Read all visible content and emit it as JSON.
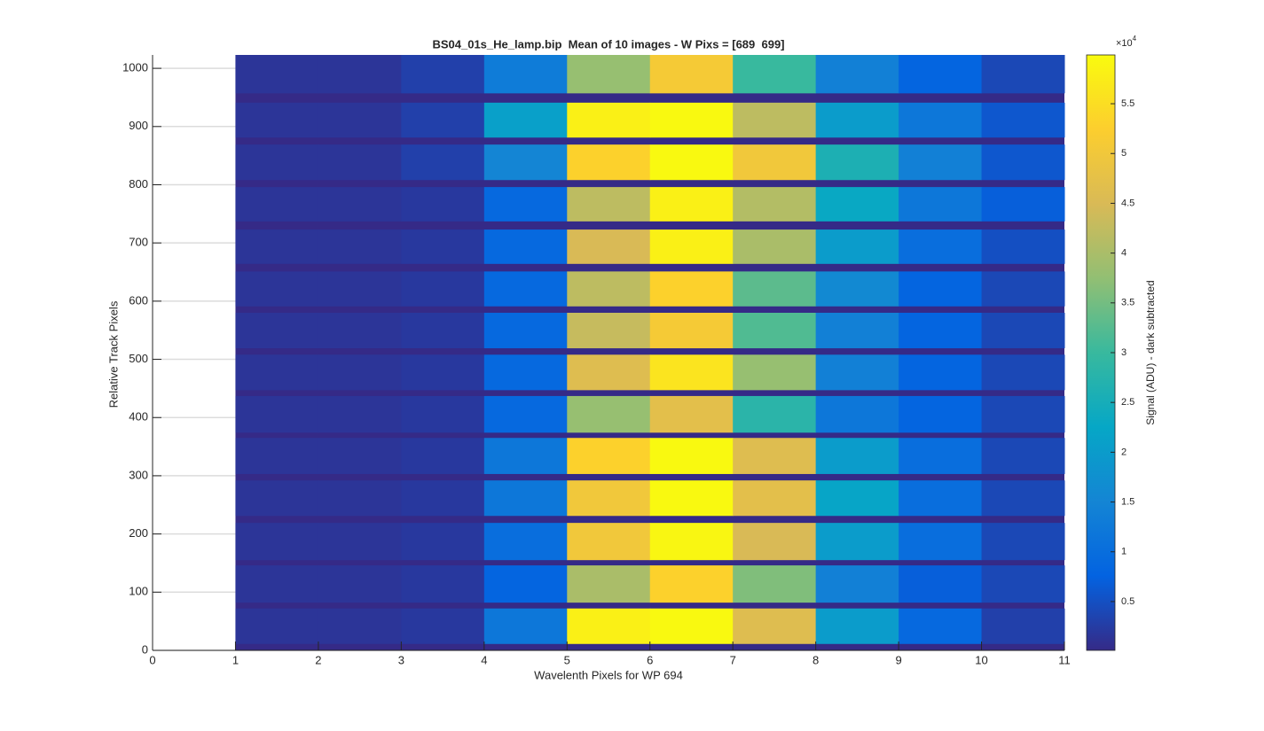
{
  "chart_data": {
    "type": "heatmap",
    "title": "BS04_01s_He_lamp.bip  Mean of 10 images - W Pixs = [689  699]",
    "xlabel": "Wavelenth Pixels for WP 694",
    "ylabel": "Relative Track Pixels",
    "colorbar_label": "Signal (ADU) - dark subtracted",
    "colorbar_multiplier_base": "×10",
    "colorbar_multiplier_exponent": "4",
    "xlim": [
      0,
      11
    ],
    "xticks": [
      0,
      1,
      2,
      3,
      4,
      5,
      6,
      7,
      8,
      9,
      10,
      11
    ],
    "ylim": [
      0,
      1023
    ],
    "yticks": [
      0,
      100,
      200,
      300,
      400,
      500,
      600,
      700,
      800,
      900,
      1000
    ],
    "ygrid": true,
    "clim": [
      0.01,
      5.99
    ],
    "cticks": [
      0.5,
      1,
      1.5,
      2,
      2.5,
      3,
      3.5,
      4,
      4.5,
      5,
      5.5
    ],
    "colormap": [
      "#352a87",
      "#0363e1",
      "#1485d4",
      "#06a7c6",
      "#38b99e",
      "#92bf73",
      "#d9ba56",
      "#fcce2e",
      "#f9fb0e"
    ],
    "x_edges": [
      1,
      2,
      3,
      4,
      5,
      6,
      7,
      8,
      9,
      10,
      11
    ],
    "y_bands": [
      [
        11,
        72
      ],
      [
        82,
        146
      ],
      [
        155,
        219
      ],
      [
        231,
        292
      ],
      [
        303,
        365
      ],
      [
        374,
        437
      ],
      [
        447,
        508
      ],
      [
        519,
        580
      ],
      [
        591,
        651
      ],
      [
        664,
        723
      ],
      [
        737,
        796
      ],
      [
        808,
        869
      ],
      [
        881,
        941
      ],
      [
        957,
        1023
      ]
    ],
    "values": [
      [
        0.15,
        0.15,
        0.2,
        1.2,
        5.8,
        5.95,
        4.6,
        2.0,
        0.9,
        0.3
      ],
      [
        0.15,
        0.15,
        0.2,
        0.8,
        4.0,
        5.3,
        3.6,
        1.4,
        0.7,
        0.4
      ],
      [
        0.15,
        0.15,
        0.2,
        1.0,
        5.0,
        5.9,
        4.5,
        2.0,
        1.0,
        0.4
      ],
      [
        0.15,
        0.15,
        0.2,
        1.2,
        5.0,
        5.95,
        4.7,
        2.2,
        1.0,
        0.4
      ],
      [
        0.15,
        0.15,
        0.2,
        1.2,
        5.3,
        5.95,
        4.6,
        2.0,
        1.0,
        0.4
      ],
      [
        0.15,
        0.15,
        0.2,
        0.9,
        3.8,
        4.7,
        2.8,
        1.2,
        0.8,
        0.4
      ],
      [
        0.15,
        0.15,
        0.2,
        0.9,
        4.6,
        5.6,
        3.8,
        1.4,
        0.8,
        0.4
      ],
      [
        0.15,
        0.15,
        0.2,
        0.9,
        4.3,
        5.1,
        3.2,
        1.4,
        0.8,
        0.4
      ],
      [
        0.15,
        0.15,
        0.2,
        0.9,
        4.2,
        5.3,
        3.3,
        1.6,
        0.8,
        0.4
      ],
      [
        0.15,
        0.15,
        0.2,
        0.9,
        4.5,
        5.8,
        4.0,
        2.0,
        1.0,
        0.5
      ],
      [
        0.15,
        0.15,
        0.2,
        0.9,
        4.2,
        5.8,
        4.1,
        2.3,
        1.2,
        0.7
      ],
      [
        0.15,
        0.15,
        0.3,
        1.5,
        5.3,
        5.95,
        5.0,
        2.6,
        1.4,
        0.6
      ],
      [
        0.15,
        0.15,
        0.3,
        2.1,
        5.8,
        5.95,
        4.2,
        2.0,
        1.2,
        0.6
      ],
      [
        0.15,
        0.15,
        0.3,
        1.3,
        3.8,
        5.1,
        3.0,
        1.4,
        0.8,
        0.4
      ]
    ]
  }
}
